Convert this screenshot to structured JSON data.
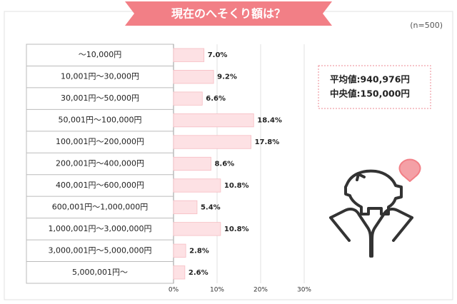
{
  "chart_data": {
    "type": "bar",
    "orientation": "horizontal",
    "title": "現在のへそくり額は？",
    "subtitle": "(n=500)",
    "categories": [
      "～10,000円",
      "10,001円～30,000円",
      "30,001円～50,000円",
      "50,001円～100,000円",
      "100,001円～200,000円",
      "200,001円～400,000円",
      "400,001円～600,000円",
      "600,001円～1,000,000円",
      "1,000,001円～3,000,000円",
      "3,000,001円～5,000,000円",
      "5,000,001円～"
    ],
    "values": [
      7.0,
      9.2,
      6.6,
      18.4,
      17.8,
      8.6,
      10.8,
      5.4,
      10.8,
      2.8,
      2.6
    ],
    "value_labels": [
      "7.0%",
      "9.2%",
      "6.6%",
      "18.4%",
      "17.8%",
      "8.6%",
      "10.8%",
      "5.4%",
      "10.8%",
      "2.8%",
      "2.6%"
    ],
    "color": "#fde1e4",
    "xlim": [
      0,
      30
    ],
    "xticks": [
      {
        "value": 0,
        "label": "0%"
      },
      {
        "value": 10,
        "label": "10%"
      },
      {
        "value": 20,
        "label": "20%"
      },
      {
        "value": 30,
        "label": "30%"
      }
    ],
    "grid": true,
    "annotations": [
      "平均値:940,976円",
      "中央値:150,000円"
    ]
  }
}
